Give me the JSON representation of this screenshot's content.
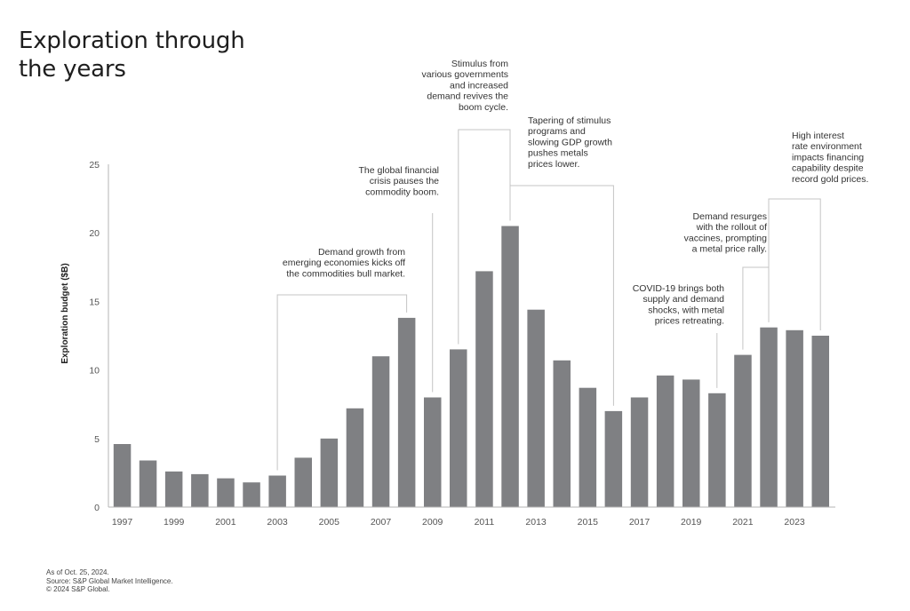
{
  "title": [
    "Exploration through",
    "the years"
  ],
  "footer": [
    "As of Oct. 25, 2024.",
    "Source: S&P Global Market Intelligence.",
    "© 2024 S&P Global."
  ],
  "colors": {
    "bar": "#7f8083",
    "axis": "#b5b5b5",
    "connector": "#c4c4c4",
    "text": "#333333"
  },
  "chart_data": {
    "type": "bar",
    "title": "Exploration through the years",
    "xlabel": "",
    "ylabel": "Exploration budget ($B)",
    "ylim": [
      0,
      25
    ],
    "yticks": [
      0,
      5,
      10,
      15,
      20,
      25
    ],
    "grid": false,
    "legend": "none",
    "categories": [
      "1997",
      "1998",
      "1999",
      "2000",
      "2001",
      "2002",
      "2003",
      "2004",
      "2005",
      "2006",
      "2007",
      "2008",
      "2009",
      "2010",
      "2011",
      "2012",
      "2013",
      "2014",
      "2015",
      "2016",
      "2017",
      "2018",
      "2019",
      "2020",
      "2021",
      "2022",
      "2023",
      "2024"
    ],
    "xtick_labels": [
      "1997",
      "1999",
      "2001",
      "2003",
      "2005",
      "2007",
      "2009",
      "2011",
      "2013",
      "2015",
      "2017",
      "2019",
      "2021",
      "2023"
    ],
    "values": [
      4.6,
      3.4,
      2.6,
      2.4,
      2.1,
      1.8,
      2.3,
      3.6,
      5.0,
      7.2,
      11.0,
      13.8,
      8.0,
      11.5,
      17.2,
      20.5,
      14.4,
      10.7,
      8.7,
      7.0,
      8.0,
      9.6,
      9.3,
      8.3,
      11.1,
      13.1,
      12.9,
      12.5
    ],
    "annotations": [
      {
        "years": [
          "2003",
          "2008"
        ],
        "lines": [
          "Demand growth from",
          "emerging economies kicks off",
          "the commodities bull market."
        ]
      },
      {
        "years": [
          "2009"
        ],
        "lines": [
          "The global financial",
          "crisis pauses the",
          "commodity boom."
        ]
      },
      {
        "years": [
          "2010",
          "2012"
        ],
        "lines": [
          "Stimulus from",
          "various governments",
          "and increased",
          "demand revives the",
          "boom cycle."
        ]
      },
      {
        "years": [
          "2012",
          "2016"
        ],
        "lines": [
          "Tapering of stimulus",
          "programs and",
          "slowing GDP growth",
          "pushes metals",
          "prices lower."
        ]
      },
      {
        "years": [
          "2020"
        ],
        "lines": [
          "COVID-19 brings both",
          "supply and demand",
          "shocks, with metal",
          "prices retreating."
        ]
      },
      {
        "years": [
          "2021",
          "2022"
        ],
        "lines": [
          "Demand resurges",
          "with the rollout of",
          "vaccines, prompting",
          "a metal price rally."
        ]
      },
      {
        "years": [
          "2022",
          "2024"
        ],
        "lines": [
          "High interest",
          "rate environment",
          "impacts financing",
          "capability despite",
          "record gold prices."
        ]
      }
    ]
  }
}
